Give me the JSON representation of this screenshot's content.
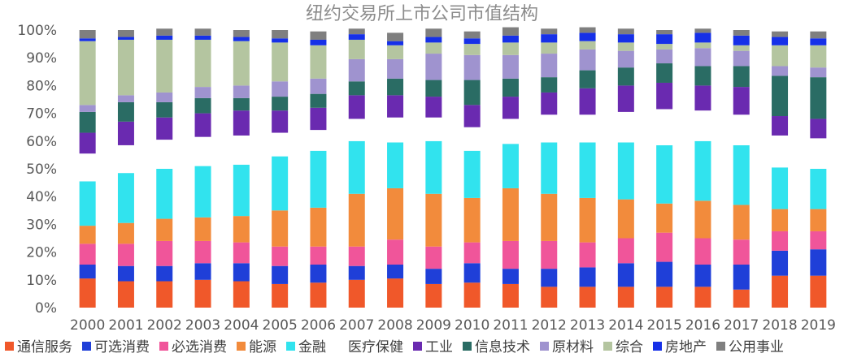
{
  "chart_data": {
    "type": "bar",
    "stacked": true,
    "title": "纽约交易所上市公司市值结构",
    "xlabel": "",
    "ylabel": "",
    "ylim": [
      0,
      100
    ],
    "y_unit": "%",
    "yticks": [
      "0%",
      "10%",
      "20%",
      "30%",
      "40%",
      "50%",
      "60%",
      "70%",
      "80%",
      "90%",
      "100%"
    ],
    "categories": [
      "2000",
      "2001",
      "2002",
      "2003",
      "2004",
      "2005",
      "2006",
      "2007",
      "2008",
      "2009",
      "2010",
      "2011",
      "2012",
      "2013",
      "2014",
      "2015",
      "2016",
      "2017",
      "2018",
      "2019"
    ],
    "legend_position": "bottom",
    "grid": false,
    "series": [
      {
        "name": "通信服务",
        "color": "#f0582a",
        "values": [
          10.5,
          9.5,
          9.5,
          10,
          9.5,
          8.5,
          9,
          10,
          10.5,
          8.5,
          9,
          8.5,
          7.5,
          7.5,
          7.5,
          7.5,
          7.5,
          6.5,
          11.5,
          11.5
        ]
      },
      {
        "name": "可选消费",
        "color": "#1f3fd8",
        "values": [
          5,
          5.5,
          5.5,
          6,
          6.5,
          6.5,
          6.5,
          5,
          5,
          5.5,
          7,
          5.5,
          6.5,
          7,
          8.5,
          9,
          8,
          9,
          9,
          9.5
        ]
      },
      {
        "name": "必选消费",
        "color": "#f0559a",
        "values": [
          7.5,
          8,
          9,
          8,
          7.5,
          7,
          6.5,
          7,
          9,
          8,
          7.5,
          10,
          10,
          9,
          9,
          10.5,
          9.5,
          9,
          7,
          6.5
        ]
      },
      {
        "name": "能源",
        "color": "#f28b3c",
        "values": [
          6.5,
          7.5,
          8,
          8.5,
          9.5,
          13,
          14,
          19,
          18.5,
          19,
          16,
          19,
          17,
          16,
          14,
          10.5,
          13.5,
          12.5,
          8,
          8
        ]
      },
      {
        "name": "金融",
        "color": "#31e3ee",
        "values": [
          16,
          18,
          18,
          18.5,
          18.5,
          19.5,
          20.5,
          19,
          16.5,
          19,
          17,
          16,
          18.5,
          20,
          20.5,
          21,
          21.5,
          21.5,
          15,
          14.5
        ]
      },
      {
        "name": "医疗保健",
        "color": "#ffffff",
        "values": [
          10,
          10,
          10.5,
          10.5,
          10.5,
          8.5,
          7.5,
          8,
          9,
          8.5,
          8.5,
          9,
          10,
          10,
          11,
          13,
          11,
          11,
          11.5,
          11
        ]
      },
      {
        "name": "工业",
        "color": "#6a2ab0",
        "values": [
          7.5,
          8.5,
          8,
          8.5,
          9,
          8,
          8,
          8.5,
          8,
          7.5,
          8,
          8,
          8,
          9.5,
          9.5,
          9.5,
          9,
          10,
          7,
          7
        ]
      },
      {
        "name": "信息技术",
        "color": "#2a6c64",
        "values": [
          7.5,
          7,
          5.5,
          5.5,
          4.5,
          5,
          5,
          5,
          6,
          6,
          9,
          6.5,
          5.5,
          6.5,
          6.5,
          7,
          7,
          7.5,
          14.5,
          15
        ]
      },
      {
        "name": "原材料",
        "color": "#9f93cf",
        "values": [
          2.5,
          2.5,
          3.5,
          4,
          4.5,
          5.5,
          5.5,
          8,
          7,
          9.5,
          9,
          8.5,
          8.5,
          7.5,
          6,
          5,
          6.5,
          5.5,
          3.5,
          3.5
        ]
      },
      {
        "name": "综合",
        "color": "#b4c5a0",
        "values": [
          23,
          20,
          19,
          17,
          16,
          14,
          12,
          7,
          5,
          4,
          4,
          4.5,
          4,
          3,
          3,
          2,
          2,
          2,
          7.5,
          8
        ]
      },
      {
        "name": "房地产",
        "color": "#1630e8",
        "values": [
          1,
          1,
          1.5,
          1.5,
          1.5,
          1.5,
          2,
          2,
          1.5,
          2,
          2,
          2.5,
          3,
          3,
          3,
          3.5,
          3.5,
          3.5,
          3,
          2.5
        ]
      },
      {
        "name": "公用事业",
        "color": "#7f7f7f",
        "values": [
          3,
          2.5,
          2.5,
          2.5,
          2.5,
          3,
          3,
          2,
          3,
          3,
          2.5,
          3,
          2,
          2,
          2,
          1.5,
          1.5,
          2,
          2,
          2.5
        ]
      }
    ]
  }
}
